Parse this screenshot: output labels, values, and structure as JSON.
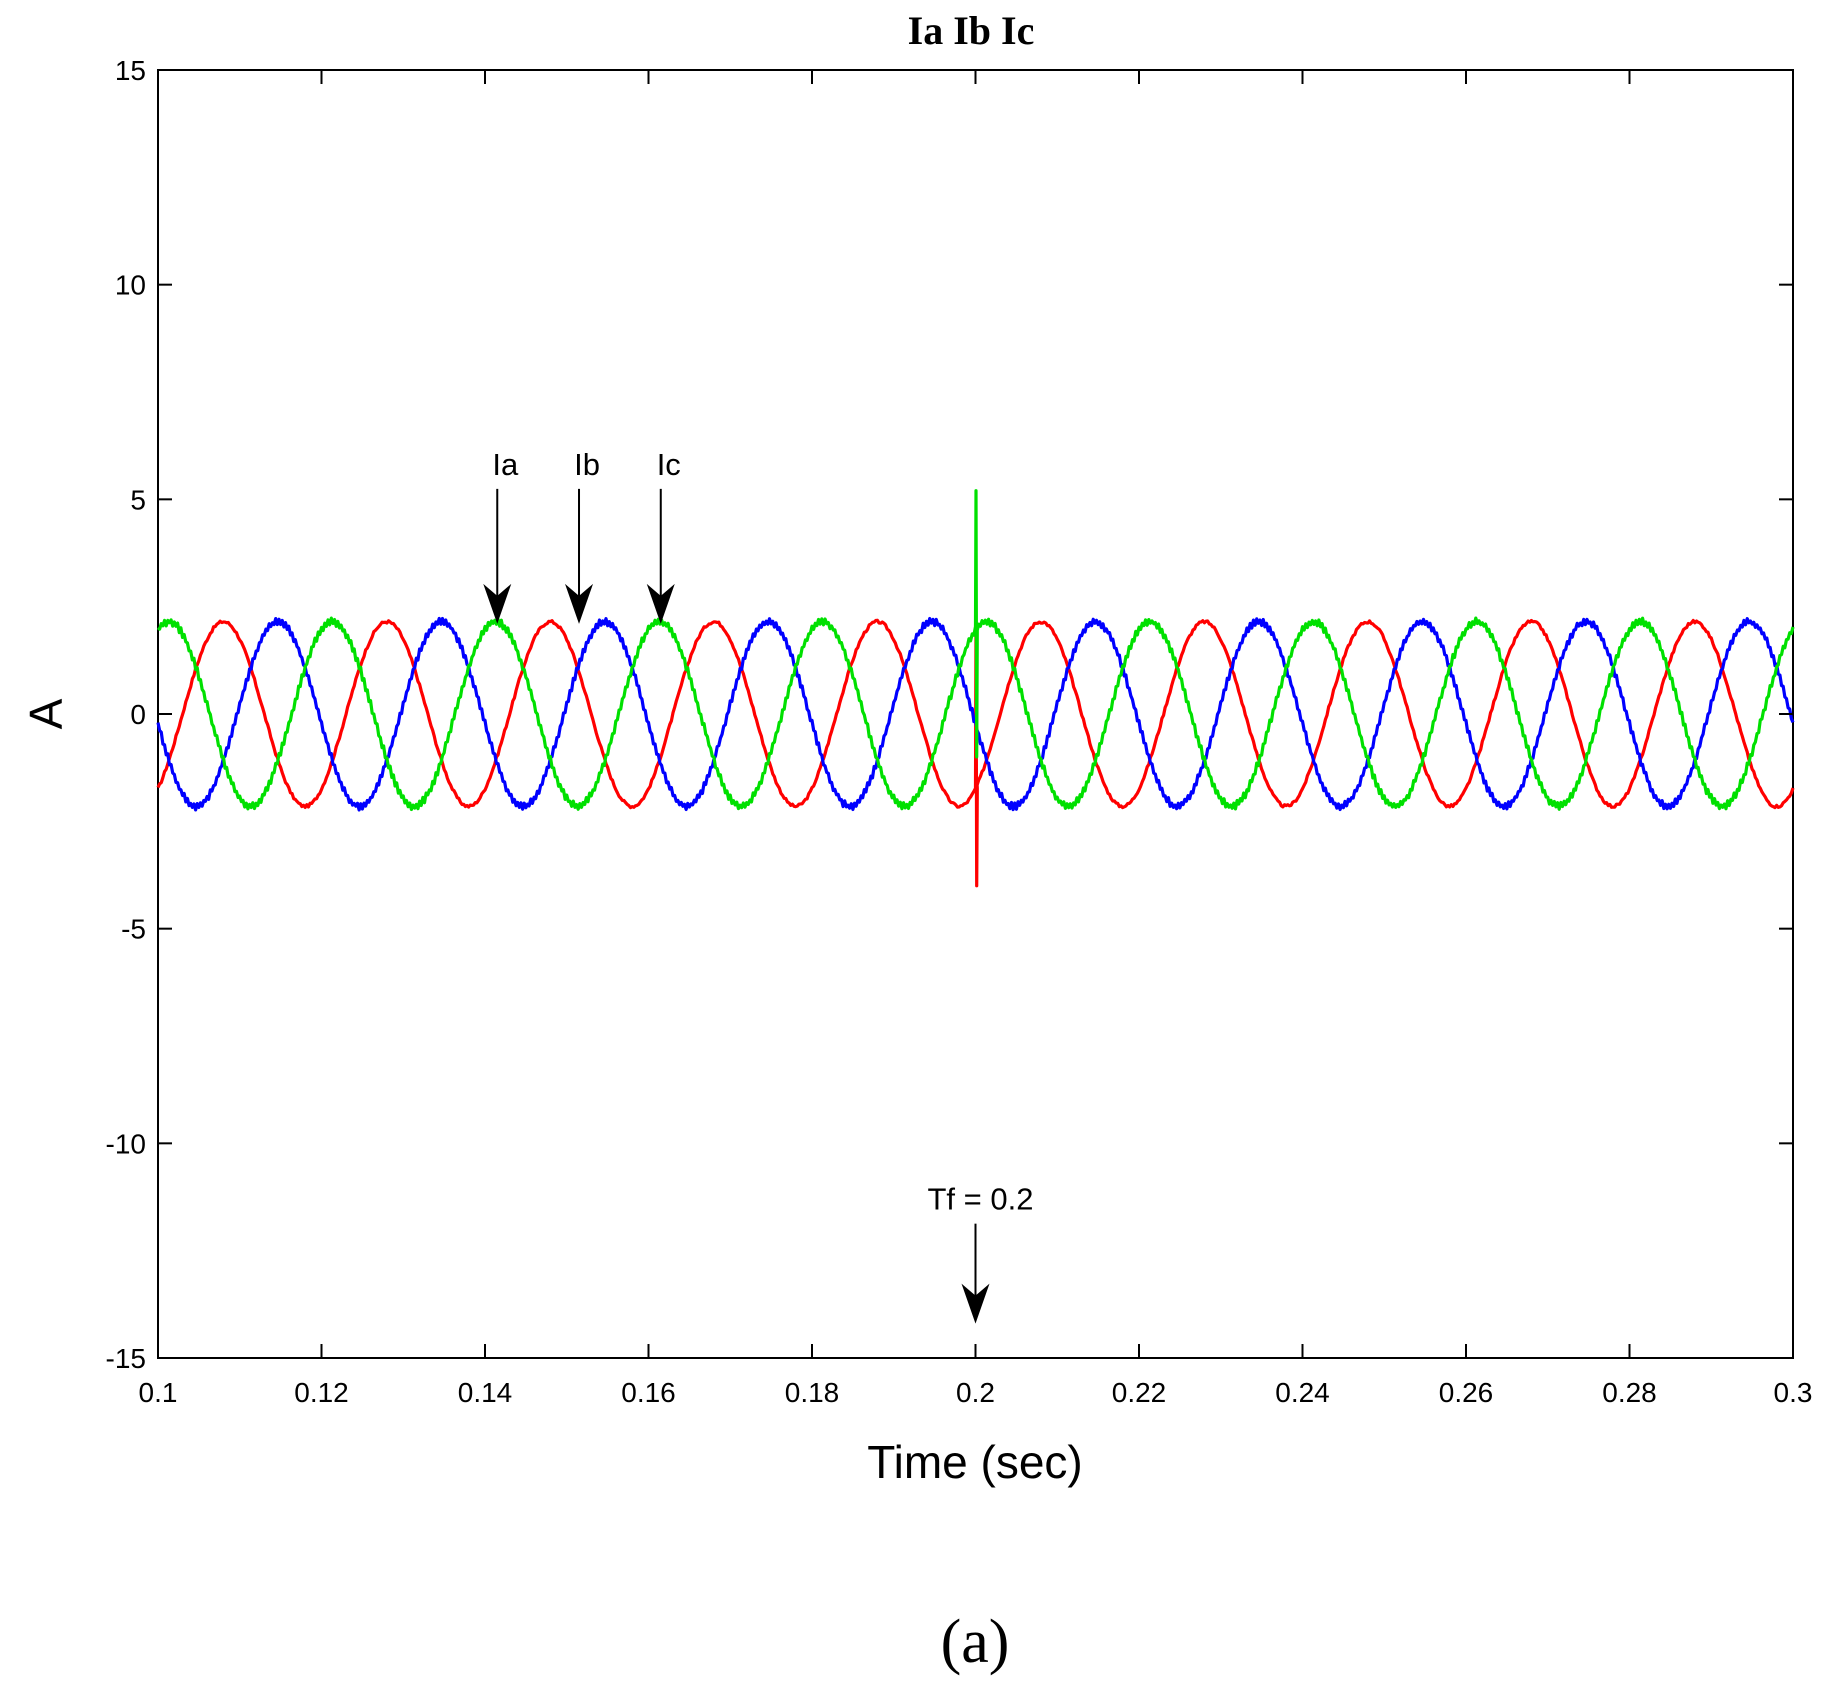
{
  "chart_data": {
    "type": "line",
    "title": "Ia Ib Ic",
    "xlabel": "Time (sec)",
    "ylabel": "A",
    "xlim": [
      0.1,
      0.3
    ],
    "ylim": [
      -15,
      15
    ],
    "xticks": [
      0.1,
      0.12,
      0.14,
      0.16,
      0.18,
      0.2,
      0.22,
      0.24,
      0.26,
      0.28,
      0.3
    ],
    "xtick_labels": [
      "0.1",
      "0.12",
      "0.14",
      "0.16",
      "0.18",
      "0.2",
      "0.22",
      "0.24",
      "0.26",
      "0.28",
      "0.3"
    ],
    "yticks": [
      15,
      10,
      5,
      0,
      -5,
      -10,
      -15
    ],
    "ytick_labels": [
      "15",
      "10",
      "5",
      "0",
      "-5",
      "-10",
      "-15"
    ],
    "grid": false,
    "series_model": {
      "frequency_hz": 50,
      "amplitude_a": 2.15,
      "sample_step_s": 0.0002
    },
    "series": [
      {
        "label": "Ia",
        "color": "#ff0000",
        "phase_deg": -54,
        "transient": {
          "t": 0.2,
          "min": -4.0,
          "max": 2.1
        }
      },
      {
        "label": "Ib",
        "color": "#0000ff",
        "phase_deg": -174,
        "transient": null
      },
      {
        "label": "Ic",
        "color": "#00e000",
        "phase_deg": 66,
        "transient": {
          "t": 0.2,
          "min": -1.0,
          "max": 5.2
        }
      }
    ],
    "annotations": [
      {
        "text": "Ia",
        "x": 0.1415,
        "y": 2.1
      },
      {
        "text": "Ib",
        "x": 0.1515,
        "y": 2.1
      },
      {
        "text": "Ic",
        "x": 0.1615,
        "y": 2.1
      },
      {
        "text": "Tf = 0.2",
        "x": 0.2,
        "y": -14.2
      }
    ]
  },
  "caption": "(a)"
}
